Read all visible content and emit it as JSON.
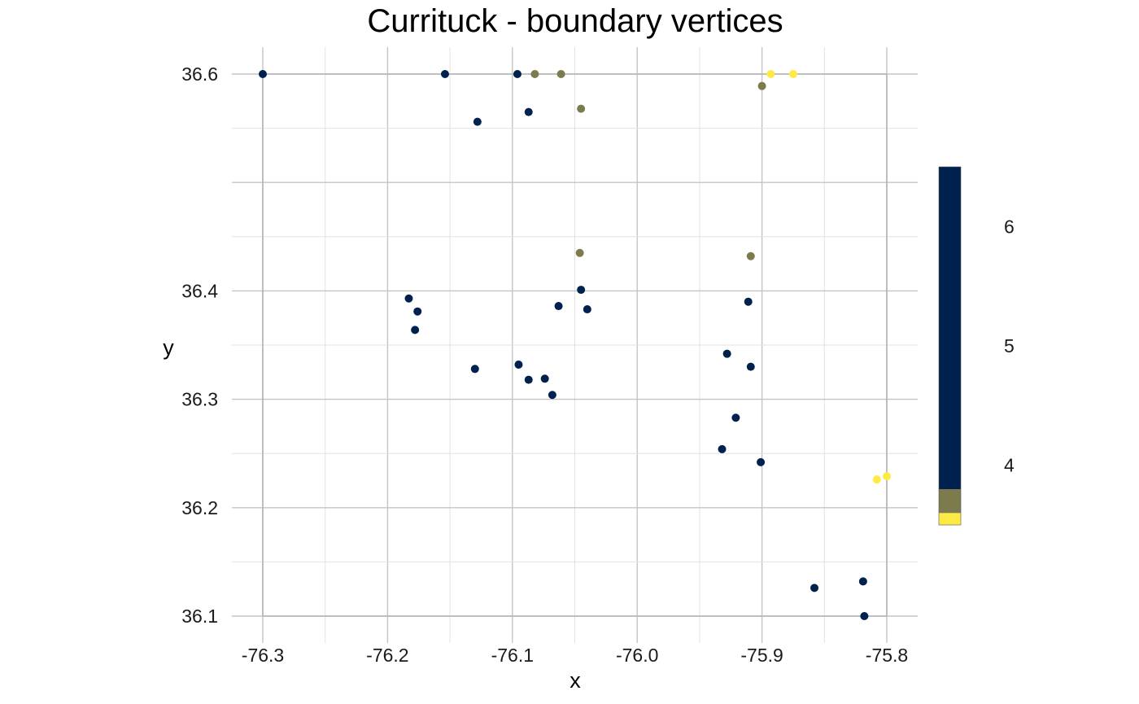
{
  "chart_data": {
    "type": "scatter",
    "title": "Currituck - boundary vertices",
    "xlabel": "x",
    "ylabel": "y",
    "xlim": [
      -76.3,
      -75.8
    ],
    "ylim": [
      36.1,
      36.6
    ],
    "x_ticks": [
      -76.3,
      -76.2,
      -76.1,
      -76.0,
      -75.9,
      -75.8
    ],
    "x_tick_labels": [
      "-76.3",
      "-76.2",
      "-76.1",
      "-76.0",
      "-75.9",
      "-75.8"
    ],
    "y_ticks": [
      36.1,
      36.2,
      36.3,
      36.4,
      36.6
    ],
    "y_tick_labels": [
      "36.1",
      "36.2",
      "36.3",
      "36.4",
      "36.6"
    ],
    "grid": true,
    "legend": {
      "type": "colorbar",
      "placement": "right",
      "range": [
        3.5,
        6.5
      ],
      "ticks": [
        4,
        5,
        6
      ],
      "tick_labels": [
        "4",
        "5",
        "6"
      ],
      "bands": [
        {
          "from": 3.5,
          "to": 3.6,
          "color": "#FFE945"
        },
        {
          "from": 3.6,
          "to": 3.8,
          "color": "#7C7B4E"
        },
        {
          "from": 3.8,
          "to": 6.5,
          "color": "#00204D"
        }
      ]
    },
    "colors": {
      "4": "#FFE945",
      "5": "#7C7B4E",
      "6": "#00204D"
    },
    "points": [
      {
        "x": -76.3,
        "y": 36.6,
        "v": 6
      },
      {
        "x": -76.154,
        "y": 36.6,
        "v": 6
      },
      {
        "x": -76.096,
        "y": 36.6,
        "v": 6
      },
      {
        "x": -76.082,
        "y": 36.6,
        "v": 5
      },
      {
        "x": -76.061,
        "y": 36.6,
        "v": 5
      },
      {
        "x": -75.893,
        "y": 36.6,
        "v": 4
      },
      {
        "x": -75.875,
        "y": 36.6,
        "v": 4
      },
      {
        "x": -75.9,
        "y": 36.589,
        "v": 5
      },
      {
        "x": -76.045,
        "y": 36.568,
        "v": 5
      },
      {
        "x": -76.087,
        "y": 36.565,
        "v": 6
      },
      {
        "x": -76.128,
        "y": 36.556,
        "v": 6
      },
      {
        "x": -76.046,
        "y": 36.435,
        "v": 5
      },
      {
        "x": -75.909,
        "y": 36.432,
        "v": 5
      },
      {
        "x": -76.045,
        "y": 36.401,
        "v": 6
      },
      {
        "x": -76.183,
        "y": 36.393,
        "v": 6
      },
      {
        "x": -75.911,
        "y": 36.39,
        "v": 6
      },
      {
        "x": -76.063,
        "y": 36.386,
        "v": 6
      },
      {
        "x": -76.04,
        "y": 36.383,
        "v": 6
      },
      {
        "x": -76.176,
        "y": 36.381,
        "v": 6
      },
      {
        "x": -76.178,
        "y": 36.364,
        "v": 6
      },
      {
        "x": -75.928,
        "y": 36.342,
        "v": 6
      },
      {
        "x": -76.095,
        "y": 36.332,
        "v": 6
      },
      {
        "x": -75.909,
        "y": 36.33,
        "v": 6
      },
      {
        "x": -76.13,
        "y": 36.328,
        "v": 6
      },
      {
        "x": -76.074,
        "y": 36.319,
        "v": 6
      },
      {
        "x": -76.087,
        "y": 36.318,
        "v": 6
      },
      {
        "x": -76.068,
        "y": 36.304,
        "v": 6
      },
      {
        "x": -75.921,
        "y": 36.283,
        "v": 6
      },
      {
        "x": -75.932,
        "y": 36.254,
        "v": 6
      },
      {
        "x": -75.901,
        "y": 36.242,
        "v": 6
      },
      {
        "x": -75.808,
        "y": 36.226,
        "v": 4
      },
      {
        "x": -75.8,
        "y": 36.229,
        "v": 4
      },
      {
        "x": -75.819,
        "y": 36.132,
        "v": 6
      },
      {
        "x": -75.858,
        "y": 36.126,
        "v": 6
      },
      {
        "x": -75.818,
        "y": 36.1,
        "v": 6
      }
    ]
  }
}
